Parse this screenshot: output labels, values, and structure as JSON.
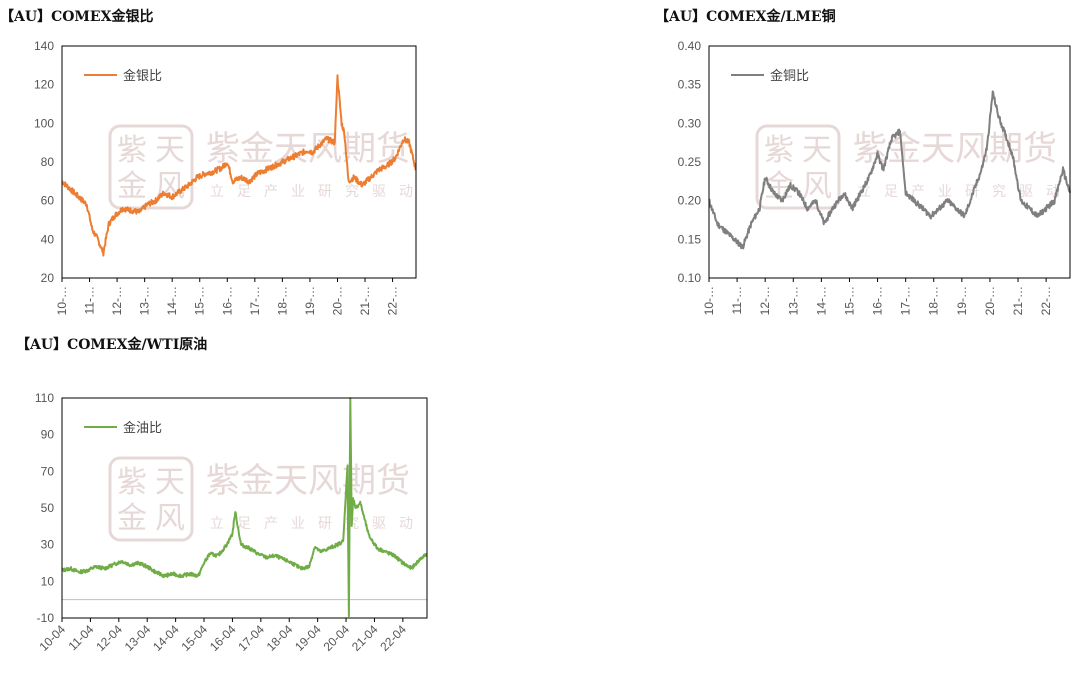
{
  "colors": {
    "gold_silver": "#ed7d31",
    "gold_copper": "#7f7f7f",
    "gold_oil": "#70ad47",
    "axis": "#000000",
    "zero_line": "#bfbfbf",
    "watermark": "#e7d8d8"
  },
  "watermark": {
    "logo_chars": [
      "紫",
      "天",
      "金",
      "风"
    ],
    "name": "紫金天风期货",
    "slogan": [
      "立",
      "足",
      "产",
      "业",
      "研",
      "究",
      "驱",
      "动"
    ]
  },
  "chart_data": [
    {
      "type": "line",
      "title": "【AU】COMEX金银比",
      "series": [
        {
          "name": "金银比"
        }
      ],
      "ylim": [
        20,
        140
      ],
      "yticks": [
        "20",
        "40",
        "60",
        "80",
        "100",
        "120",
        "140"
      ],
      "xticks": [
        "10-…",
        "11-…",
        "12-…",
        "13-…",
        "14-…",
        "15-…",
        "16-…",
        "17-…",
        "18-…",
        "19-…",
        "20-…",
        "21-…",
        "22-…"
      ],
      "xlim": [
        2010.0,
        2022.85
      ],
      "x": [
        2010.0,
        2010.3,
        2010.6,
        2010.9,
        2011.1,
        2011.3,
        2011.5,
        2011.7,
        2011.9,
        2012.2,
        2012.5,
        2012.8,
        2013.1,
        2013.4,
        2013.7,
        2014.0,
        2014.3,
        2014.6,
        2014.9,
        2015.2,
        2015.5,
        2015.8,
        2016.0,
        2016.2,
        2016.5,
        2016.8,
        2017.1,
        2017.4,
        2017.7,
        2018.0,
        2018.3,
        2018.6,
        2018.9,
        2019.1,
        2019.3,
        2019.6,
        2019.9,
        2020.0,
        2020.15,
        2020.25,
        2020.4,
        2020.6,
        2020.9,
        2021.2,
        2021.5,
        2021.8,
        2022.1,
        2022.4,
        2022.6,
        2022.85
      ],
      "values": [
        70,
        66,
        62,
        58,
        45,
        40,
        33,
        48,
        52,
        56,
        55,
        54,
        58,
        60,
        64,
        62,
        65,
        68,
        72,
        74,
        75,
        77,
        80,
        70,
        72,
        70,
        74,
        76,
        78,
        80,
        82,
        84,
        86,
        85,
        88,
        92,
        90,
        124,
        100,
        95,
        70,
        72,
        68,
        72,
        76,
        78,
        82,
        92,
        90,
        76
      ],
      "grid": false,
      "legend": "top-left"
    },
    {
      "type": "line",
      "title": "【AU】COMEX金/LME铜",
      "series": [
        {
          "name": "金铜比"
        }
      ],
      "ylim": [
        0.1,
        0.4
      ],
      "yticks": [
        "0.10",
        "0.15",
        "0.20",
        "0.25",
        "0.30",
        "0.35",
        "0.40"
      ],
      "xticks": [
        "10-…",
        "11-…",
        "12-…",
        "13-…",
        "14-…",
        "15-…",
        "16-…",
        "17-…",
        "18-…",
        "19-…",
        "20-…",
        "21-…",
        "22-…"
      ],
      "xlim": [
        2010.0,
        2022.85
      ],
      "x": [
        2010.0,
        2010.3,
        2010.6,
        2010.9,
        2011.2,
        2011.5,
        2011.8,
        2012.0,
        2012.3,
        2012.6,
        2012.9,
        2013.2,
        2013.5,
        2013.8,
        2014.1,
        2014.4,
        2014.8,
        2015.1,
        2015.4,
        2015.7,
        2016.0,
        2016.2,
        2016.5,
        2016.8,
        2017.0,
        2017.3,
        2017.6,
        2017.9,
        2018.2,
        2018.5,
        2018.8,
        2019.1,
        2019.4,
        2019.7,
        2019.9,
        2020.1,
        2020.3,
        2020.5,
        2020.8,
        2021.1,
        2021.4,
        2021.7,
        2022.0,
        2022.3,
        2022.6,
        2022.85
      ],
      "values": [
        0.2,
        0.17,
        0.16,
        0.15,
        0.14,
        0.17,
        0.19,
        0.23,
        0.21,
        0.2,
        0.22,
        0.21,
        0.19,
        0.2,
        0.17,
        0.19,
        0.21,
        0.19,
        0.21,
        0.23,
        0.26,
        0.24,
        0.28,
        0.29,
        0.21,
        0.2,
        0.19,
        0.18,
        0.19,
        0.2,
        0.19,
        0.18,
        0.21,
        0.24,
        0.27,
        0.34,
        0.31,
        0.29,
        0.26,
        0.2,
        0.19,
        0.18,
        0.19,
        0.2,
        0.24,
        0.21
      ],
      "grid": false,
      "legend": "top-left"
    },
    {
      "type": "line",
      "title": "【AU】COMEX金/WTI原油",
      "series": [
        {
          "name": "金油比"
        }
      ],
      "ylim": [
        -10,
        110
      ],
      "yticks": [
        "-10",
        "10",
        "30",
        "50",
        "70",
        "90",
        "110"
      ],
      "xticks": [
        "10-04",
        "11-04",
        "12-04",
        "13-04",
        "14-04",
        "15-04",
        "16-04",
        "17-04",
        "18-04",
        "19-04",
        "20-04",
        "21-04",
        "22-04"
      ],
      "xlim": [
        2010.0,
        2022.85
      ],
      "x": [
        2010.0,
        2010.3,
        2010.6,
        2010.9,
        2011.2,
        2011.5,
        2011.8,
        2012.1,
        2012.4,
        2012.7,
        2013.0,
        2013.3,
        2013.6,
        2013.9,
        2014.2,
        2014.5,
        2014.8,
        2015.0,
        2015.2,
        2015.5,
        2015.8,
        2016.0,
        2016.1,
        2016.3,
        2016.6,
        2016.9,
        2017.2,
        2017.5,
        2017.8,
        2018.1,
        2018.4,
        2018.7,
        2018.9,
        2019.1,
        2019.4,
        2019.7,
        2019.9,
        2020.05,
        2020.1,
        2020.15,
        2020.2,
        2020.25,
        2020.35,
        2020.5,
        2020.8,
        2021.1,
        2021.4,
        2021.7,
        2022.0,
        2022.3,
        2022.6,
        2022.85
      ],
      "values": [
        16,
        17,
        15,
        16,
        18,
        17,
        19,
        21,
        19,
        20,
        18,
        15,
        13,
        14,
        13,
        14,
        13,
        20,
        25,
        24,
        30,
        36,
        48,
        30,
        28,
        25,
        23,
        24,
        22,
        20,
        17,
        18,
        29,
        26,
        28,
        30,
        32,
        73,
        -9,
        110,
        40,
        55,
        50,
        53,
        35,
        28,
        26,
        24,
        20,
        17,
        22,
        25
      ],
      "grid": false,
      "legend": "top-left"
    }
  ]
}
